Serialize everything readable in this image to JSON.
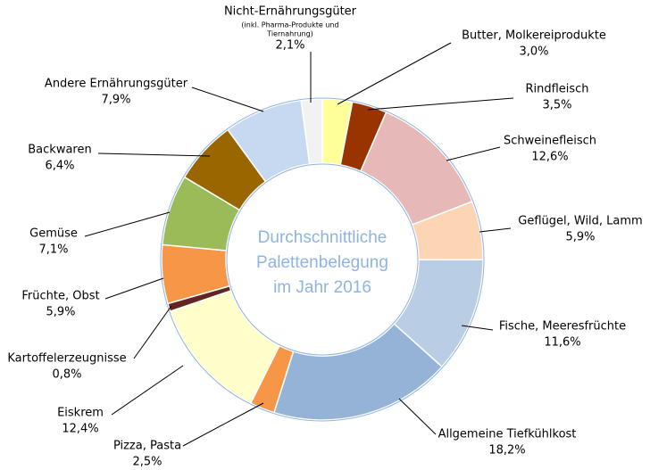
{
  "chart_data": {
    "type": "donut",
    "center_text": [
      "Durchschnittliche",
      "Palettenbelegung",
      "im Jahr 2016"
    ],
    "categories": [
      "Butter, Molkereiprodukte",
      "Rindfleisch",
      "Schweinefleisch",
      "Geflügel, Wild, Lamm",
      "Fische, Meeresfrüchte",
      "Allgemeine Tiefkühlkost",
      "Pizza, Pasta",
      "Eiskrem",
      "Kartoffelerzeugnisse",
      "Früchte, Obst",
      "Gemüse",
      "Backwaren",
      "Andere Ernährungsgüter",
      "Nicht-Ernährungsgüter"
    ],
    "values": [
      3.0,
      3.5,
      12.6,
      5.9,
      11.6,
      18.2,
      2.5,
      12.4,
      0.8,
      5.9,
      7.1,
      6.4,
      7.9,
      2.1
    ],
    "value_labels": [
      "3,0%",
      "3,5%",
      "12,6%",
      "5,9%",
      "11,6%",
      "18,2%",
      "2,5%",
      "12,4%",
      "0,8%",
      "5,9%",
      "7,1%",
      "6,4%",
      "7,9%",
      "2,1%"
    ],
    "colors": [
      "#ffff99",
      "#993300",
      "#e6b9b8",
      "#fcd5b5",
      "#b9cde5",
      "#95b3d7",
      "#f79646",
      "#ffffcc",
      "#632523",
      "#f79646",
      "#9bbb59",
      "#996600",
      "#c6d9f1",
      "#f2f2f2"
    ],
    "annotation": [
      "(inkl. Pharma-Produkte und",
      "Tiernahrung)"
    ]
  }
}
